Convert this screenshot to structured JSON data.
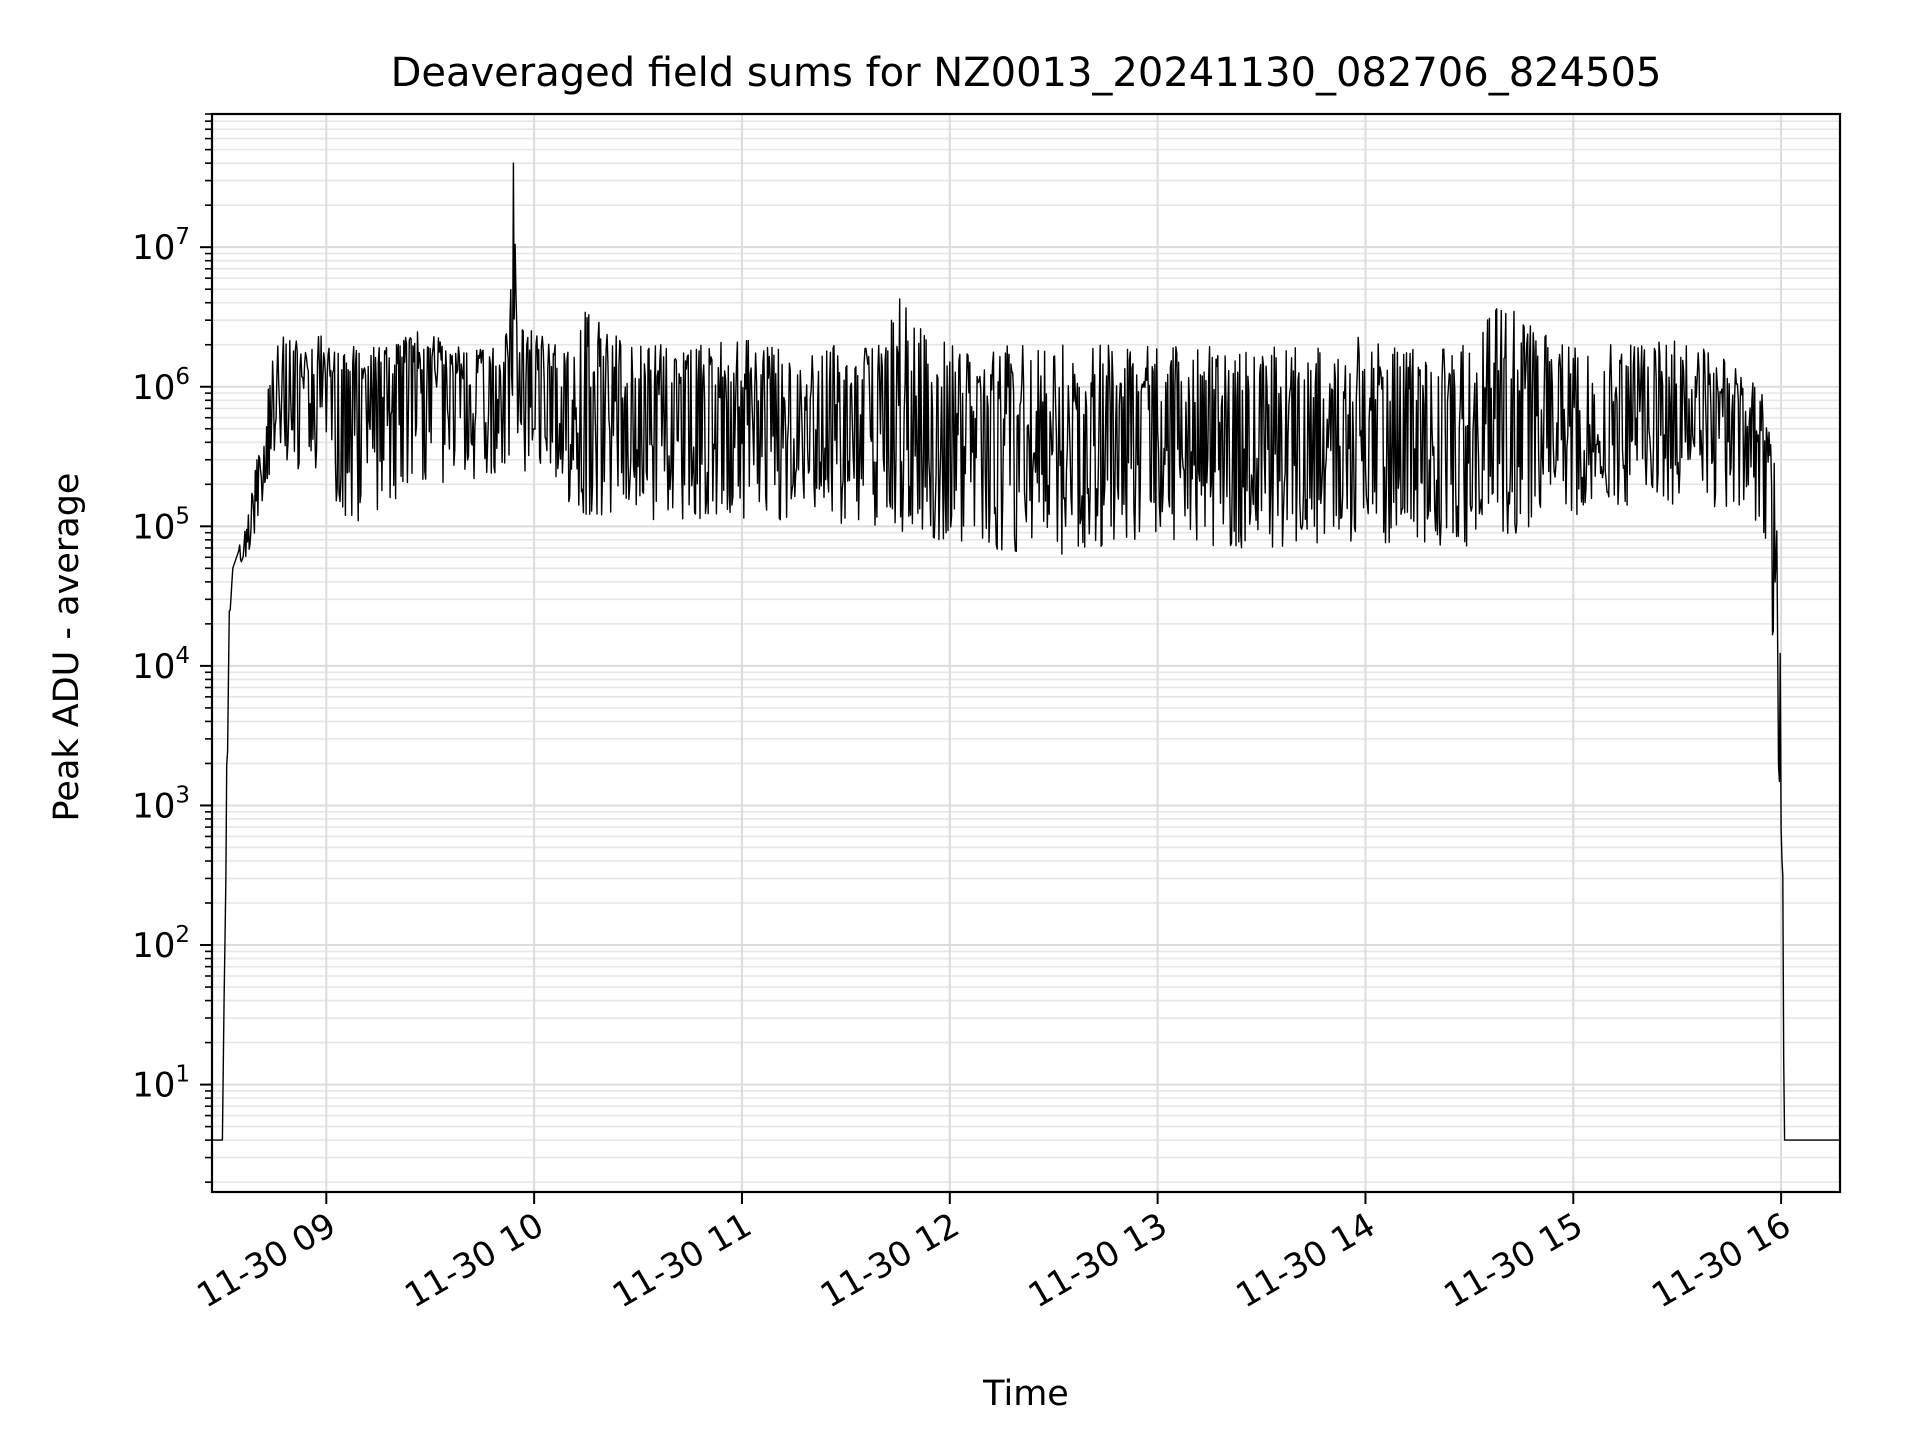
{
  "chart_data": {
    "type": "line",
    "title": "Deaveraged field sums for NZ0013_20241130_082706_824505",
    "xlabel": "Time",
    "ylabel": "Peak ADU - average",
    "x_scale": "datetime",
    "y_scale": "log",
    "xlim": [
      "2024-11-30 08:27",
      "2024-11-30 16:17"
    ],
    "ylim": [
      1.7,
      90000000
    ],
    "grid": true,
    "grid_minor": true,
    "legend": "none",
    "x_ticks": [
      {
        "value": "2024-11-30 09:00",
        "label": "11-30 09"
      },
      {
        "value": "2024-11-30 10:00",
        "label": "11-30 10"
      },
      {
        "value": "2024-11-30 11:00",
        "label": "11-30 11"
      },
      {
        "value": "2024-11-30 12:00",
        "label": "11-30 12"
      },
      {
        "value": "2024-11-30 13:00",
        "label": "11-30 13"
      },
      {
        "value": "2024-11-30 14:00",
        "label": "11-30 14"
      },
      {
        "value": "2024-11-30 15:00",
        "label": "11-30 15"
      },
      {
        "value": "2024-11-30 16:00",
        "label": "11-30 16"
      }
    ],
    "y_ticks": [
      {
        "value": 10,
        "base": "10",
        "exp": "1"
      },
      {
        "value": 100,
        "base": "10",
        "exp": "2"
      },
      {
        "value": 1000,
        "base": "10",
        "exp": "3"
      },
      {
        "value": 10000,
        "base": "10",
        "exp": "4"
      },
      {
        "value": 100000,
        "base": "10",
        "exp": "5"
      },
      {
        "value": 1000000,
        "base": "10",
        "exp": "6"
      },
      {
        "value": 10000000,
        "base": "10",
        "exp": "7"
      }
    ],
    "series": [
      {
        "color": "#000000",
        "x": [
          "2024-11-30 08:27",
          "2024-11-30 08:30",
          "2024-11-30 08:31",
          "2024-11-30 08:32",
          "2024-11-30 08:33",
          "2024-11-30 08:35",
          "2024-11-30 08:37",
          "2024-11-30 08:40",
          "2024-11-30 08:43",
          "2024-11-30 08:46",
          "2024-11-30 08:50",
          "2024-11-30 08:54",
          "2024-11-30 08:58",
          "2024-11-30 09:00",
          "2024-11-30 09:05",
          "2024-11-30 09:10",
          "2024-11-30 09:15",
          "2024-11-30 09:20",
          "2024-11-30 09:25",
          "2024-11-30 09:30",
          "2024-11-30 09:35",
          "2024-11-30 09:40",
          "2024-11-30 09:45",
          "2024-11-30 09:50",
          "2024-11-30 09:53",
          "2024-11-30 09:54",
          "2024-11-30 09:55",
          "2024-11-30 10:00",
          "2024-11-30 10:10",
          "2024-11-30 10:15",
          "2024-11-30 10:20",
          "2024-11-30 10:30",
          "2024-11-30 10:40",
          "2024-11-30 10:50",
          "2024-11-30 11:00",
          "2024-11-30 11:10",
          "2024-11-30 11:20",
          "2024-11-30 11:30",
          "2024-11-30 11:40",
          "2024-11-30 11:45",
          "2024-11-30 11:50",
          "2024-11-30 12:00",
          "2024-11-30 12:10",
          "2024-11-30 12:20",
          "2024-11-30 12:30",
          "2024-11-30 12:40",
          "2024-11-30 12:50",
          "2024-11-30 13:00",
          "2024-11-30 13:10",
          "2024-11-30 13:20",
          "2024-11-30 13:30",
          "2024-11-30 13:40",
          "2024-11-30 13:50",
          "2024-11-30 14:00",
          "2024-11-30 14:10",
          "2024-11-30 14:20",
          "2024-11-30 14:30",
          "2024-11-30 14:40",
          "2024-11-30 14:45",
          "2024-11-30 14:50",
          "2024-11-30 15:00",
          "2024-11-30 15:10",
          "2024-11-30 15:20",
          "2024-11-30 15:30",
          "2024-11-30 15:40",
          "2024-11-30 15:45",
          "2024-11-30 15:50",
          "2024-11-30 15:55",
          "2024-11-30 15:58",
          "2024-11-30 16:00",
          "2024-11-30 16:01",
          "2024-11-30 16:17"
        ],
        "y": [
          4,
          4,
          600,
          20000,
          50000,
          70000,
          80000,
          200000,
          600000,
          800000,
          900000,
          1000000,
          1100000,
          800000,
          500000,
          700000,
          900000,
          1000000,
          1100000,
          1100000,
          1000000,
          1000000,
          1000000,
          1000000,
          1200000,
          40000000,
          1500000,
          1100000,
          900000,
          1200000,
          900000,
          800000,
          700000,
          650000,
          600000,
          550000,
          550000,
          600000,
          700000,
          500000,
          350000,
          400000,
          450000,
          400000,
          380000,
          380000,
          380000,
          380000,
          380000,
          380000,
          380000,
          380000,
          380000,
          400000,
          420000,
          450000,
          450000,
          450000,
          500000,
          450000,
          480000,
          550000,
          700000,
          700000,
          600000,
          800000,
          400000,
          150000,
          20000,
          800,
          4,
          4
        ],
        "y_min": [
          4,
          4,
          300,
          15000,
          50000,
          50000,
          60000,
          100000,
          200000,
          250000,
          300000,
          200000,
          250000,
          150000,
          120000,
          100000,
          120000,
          150000,
          200000,
          200000,
          200000,
          200000,
          200000,
          250000,
          300000,
          300000,
          250000,
          200000,
          150000,
          120000,
          110000,
          110000,
          110000,
          110000,
          110000,
          110000,
          120000,
          100000,
          80000,
          70000,
          80000,
          80000,
          70000,
          60000,
          60000,
          70000,
          70000,
          70000,
          70000,
          70000,
          70000,
          70000,
          75000,
          80000,
          70000,
          70000,
          70000,
          80000,
          90000,
          90000,
          110000,
          130000,
          150000,
          120000,
          130000,
          100000,
          120000,
          90000,
          10000,
          600,
          4,
          4
        ],
        "y_max": [
          4,
          4,
          1000,
          25000,
          60000,
          80000,
          100000,
          400000,
          1200000,
          2500000,
          2500000,
          2000000,
          2500000,
          2000000,
          2000000,
          2000000,
          2000000,
          2000000,
          2500000,
          2500000,
          2000000,
          2000000,
          2000000,
          2000000,
          3000000,
          40000000,
          3000000,
          2500000,
          2000000,
          4500000,
          2500000,
          2200000,
          2000000,
          2000000,
          2200000,
          2000000,
          2000000,
          2000000,
          2000000,
          4500000,
          3000000,
          2000000,
          2000000,
          2000000,
          2000000,
          2000000,
          2000000,
          2000000,
          2000000,
          2000000,
          2000000,
          2000000,
          2000000,
          2500000,
          2000000,
          2000000,
          2000000,
          4500000,
          3000000,
          2500000,
          2000000,
          2000000,
          2000000,
          2200000,
          1800000,
          1500000,
          1300000,
          1000000,
          300000,
          70000,
          4,
          4
        ]
      }
    ]
  }
}
